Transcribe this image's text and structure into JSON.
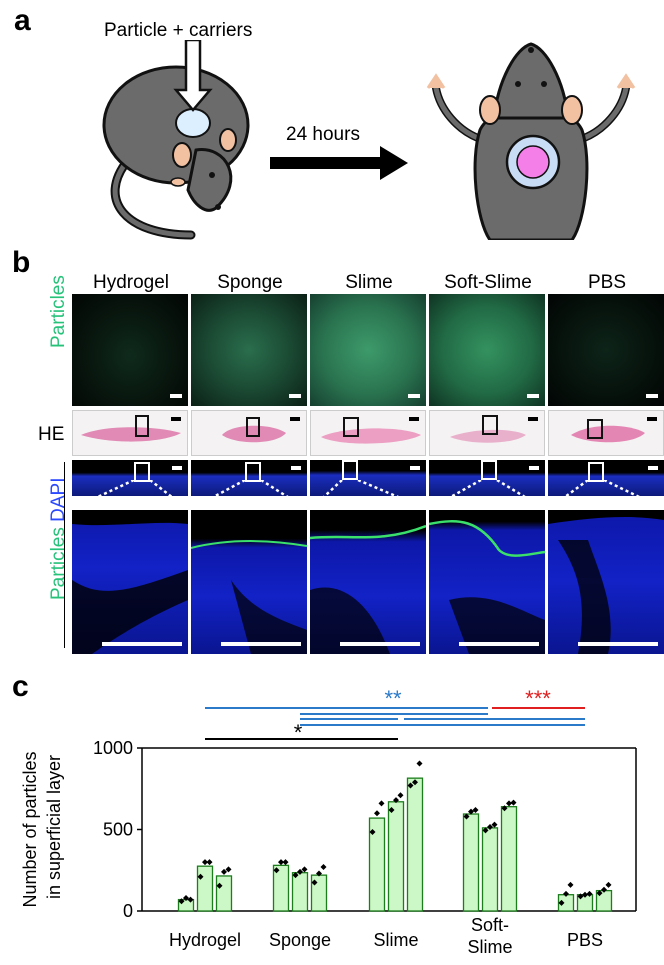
{
  "panel_a": {
    "letter": "a",
    "injection_label": "Particle + carriers",
    "time_label": "24 hours"
  },
  "panel_b": {
    "letter": "b",
    "columns": [
      "Hydrogel",
      "Sponge",
      "Slime",
      "Soft-Slime",
      "PBS"
    ],
    "row_label_particles": "Particles",
    "row_label_he": "HE",
    "row_label_merge_particles": "Particles",
    "row_label_merge_dapi": "DAPI",
    "colors": {
      "particles": "#27c27a",
      "dapi": "#2b49ff"
    }
  },
  "panel_c": {
    "letter": "c",
    "significance": [
      {
        "label": "**",
        "color": "#2a7ac9"
      },
      {
        "label": "***",
        "color": "#e02020"
      },
      {
        "label": "*",
        "color": "#000000"
      }
    ]
  },
  "chart_data": {
    "type": "bar",
    "ylabel": "Number of particles in superficial layer",
    "ylabel_lines": [
      "Number of particles",
      "in superficial layer"
    ],
    "ylim": [
      0,
      1000
    ],
    "yticks": [
      0,
      500,
      1000
    ],
    "groups": [
      {
        "label": "Hydrogel",
        "label_lines": [
          "Hydrogel"
        ],
        "bars": [
          {
            "value": 70,
            "points": [
              60,
              80,
              70
            ]
          },
          {
            "value": 275,
            "points": [
              210,
              300,
              300
            ]
          },
          {
            "value": 215,
            "points": [
              155,
              240,
              255
            ]
          }
        ]
      },
      {
        "label": "Sponge",
        "label_lines": [
          "Sponge"
        ],
        "bars": [
          {
            "value": 280,
            "points": [
              250,
              300,
              300
            ]
          },
          {
            "value": 235,
            "points": [
              220,
              240,
              255
            ]
          },
          {
            "value": 220,
            "points": [
              175,
              230,
              270
            ]
          }
        ]
      },
      {
        "label": "Slime",
        "label_lines": [
          "Slime"
        ],
        "bars": [
          {
            "value": 570,
            "points": [
              485,
              600,
              660
            ]
          },
          {
            "value": 670,
            "points": [
              620,
              680,
              710
            ]
          },
          {
            "value": 815,
            "points": [
              770,
              790,
              905
            ]
          }
        ]
      },
      {
        "label": "Soft-Slime",
        "label_lines": [
          "Soft-",
          "Slime"
        ],
        "bars": [
          {
            "value": 595,
            "points": [
              580,
              610,
              620
            ]
          },
          {
            "value": 510,
            "points": [
              495,
              515,
              530
            ]
          },
          {
            "value": 640,
            "points": [
              630,
              660,
              665
            ]
          }
        ]
      },
      {
        "label": "PBS",
        "label_lines": [
          "PBS"
        ],
        "bars": [
          {
            "value": 100,
            "points": [
              50,
              105,
              160
            ]
          },
          {
            "value": 100,
            "points": [
              90,
              100,
              105
            ]
          },
          {
            "value": 125,
            "points": [
              110,
              130,
              160
            ]
          }
        ]
      }
    ],
    "bar_color": "#ccf7c6",
    "bar_edge": "#1c7d1c"
  }
}
